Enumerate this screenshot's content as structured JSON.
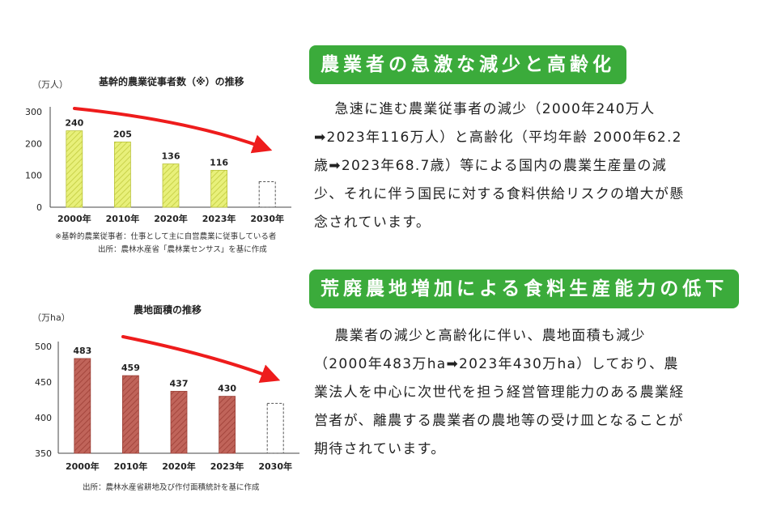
{
  "charts": [
    {
      "title": "基幹的農業従事者数（※）の推移",
      "unit": "（万人）",
      "note1": "※基幹的農業従事者：仕事として主に自営農業に従事している者",
      "note2": "出所：農林水産省「農林業センサス」を基に作成"
    },
    {
      "title": "農地面積の推移",
      "unit": "（万ha）",
      "note1": "出所：農林水産省耕地及び作付面積統計を基に作成"
    }
  ],
  "chart_data": [
    {
      "type": "bar",
      "title": "基幹的農業従事者数（※）の推移",
      "ylabel": "（万人）",
      "categories": [
        "2000年",
        "2010年",
        "2020年",
        "2023年",
        "2030年"
      ],
      "values": [
        240,
        205,
        136,
        116,
        null
      ],
      "value_labels": [
        "240",
        "205",
        "136",
        "116",
        ""
      ],
      "yticks": [
        "0",
        "100",
        "200",
        "300"
      ],
      "ylim": [
        0,
        300
      ],
      "bar_color": "#e8f07a",
      "projection_bar": "2030年 (dashed outline, no value)",
      "trend_arrow_color": "#ee1c1c"
    },
    {
      "type": "bar",
      "title": "農地面積の推移",
      "ylabel": "（万ha）",
      "categories": [
        "2000年",
        "2010年",
        "2020年",
        "2023年",
        "2030年"
      ],
      "values": [
        483,
        459,
        437,
        430,
        null
      ],
      "value_labels": [
        "483",
        "459",
        "437",
        "430",
        ""
      ],
      "yticks": [
        "350",
        "400",
        "450",
        "500"
      ],
      "ylim": [
        350,
        500
      ],
      "bar_color": "#c0645a",
      "projection_bar": "2030年 (dashed outline, no value)",
      "trend_arrow_color": "#ee1c1c"
    }
  ],
  "sections": [
    {
      "heading": "農業者の急激な減少と高齢化",
      "lines": [
        "急速に進む農業従事者の減少（2000年240万人",
        "➡2023年116万人）と高齢化（平均年齢 2000年62.2",
        "歳➡2023年68.7歳）等による国内の農業生産量の減",
        "少、それに伴う国民に対する食料供給リスクの増大が懸",
        "念されています。"
      ]
    },
    {
      "heading": "荒廃農地増加による食料生産能力の低下",
      "lines": [
        "農業者の減少と高齢化に伴い、農地面積も減少",
        "（2000年483万ha➡2023年430万ha）しており、農",
        "業法人を中心に次世代を担う経営管理能力のある農業経",
        "営者が、離農する農業者の農地等の受け皿となることが",
        "期待されています。"
      ]
    }
  ],
  "colors": {
    "heading_bg": "#3bab3b",
    "arrow": "#ee1c1c"
  }
}
